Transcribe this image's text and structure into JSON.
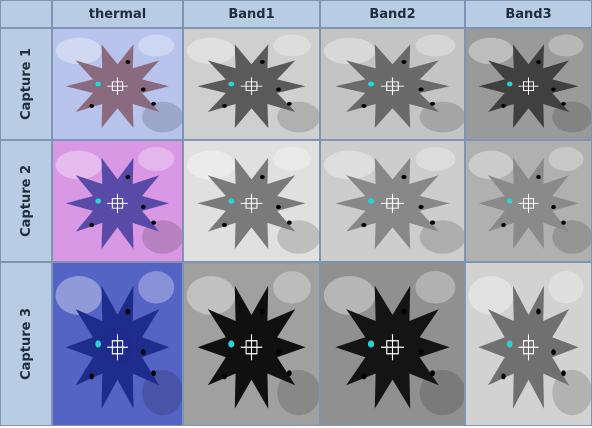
{
  "table": {
    "columns": [
      "thermal",
      "Band1",
      "Band2",
      "Band3"
    ],
    "rows": [
      "Capture 1",
      "Capture 2",
      "Capture 3"
    ]
  }
}
